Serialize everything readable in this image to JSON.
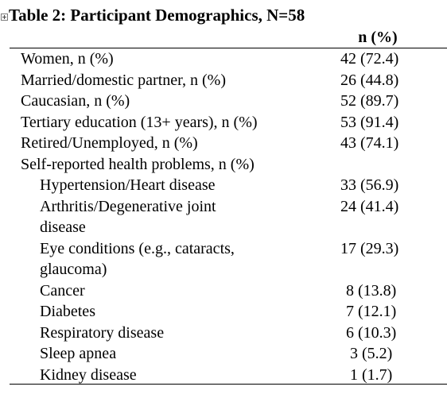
{
  "table": {
    "title": "Table 2:  Participant Demographics, N=58",
    "column_header": "n (%)",
    "rows": [
      {
        "label": "Women, n (%)",
        "value": "42 (72.4)",
        "sub": false
      },
      {
        "label": "Married/domestic partner, n (%)",
        "value": "26 (44.8)",
        "sub": false
      },
      {
        "label": "Caucasian, n (%)",
        "value": "52 (89.7)",
        "sub": false
      },
      {
        "label": "Tertiary education (13+ years), n (%)",
        "value": "53 (91.4)",
        "sub": false
      },
      {
        "label": "Retired/Unemployed, n (%)",
        "value": "43 (74.1)",
        "sub": false
      },
      {
        "label": "Self-reported health problems, n (%)",
        "value": "",
        "sub": false
      },
      {
        "label": "Hypertension/Heart disease",
        "value": "33 (56.9)",
        "sub": true
      },
      {
        "label": "Arthritis/Degenerative joint disease",
        "value": "24 (41.4)",
        "sub": true
      },
      {
        "label": "Eye conditions (e.g., cataracts, glaucoma)",
        "value": "17 (29.3)",
        "sub": true
      },
      {
        "label": "Cancer",
        "value": "8 (13.8)",
        "sub": true
      },
      {
        "label": "Diabetes",
        "value": "7 (12.1)",
        "sub": true
      },
      {
        "label": "Respiratory disease",
        "value": "6 (10.3)",
        "sub": true
      },
      {
        "label": "Sleep apnea",
        "value": "3 (5.2)",
        "sub": true
      },
      {
        "label": "Kidney disease",
        "value": "1 (1.7)",
        "sub": true
      }
    ]
  }
}
